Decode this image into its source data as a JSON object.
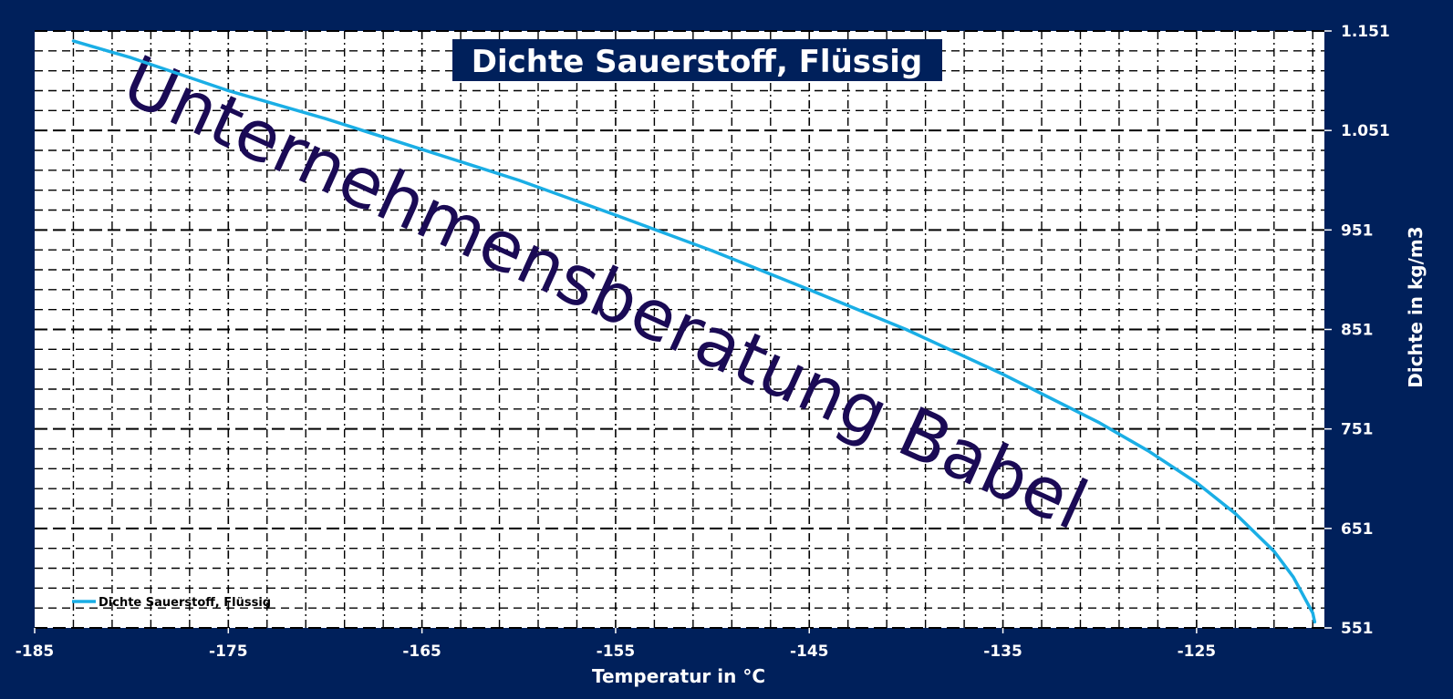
{
  "chart_data": {
    "type": "line",
    "title": "Dichte Sauerstoff, Flüssig",
    "xlabel": "Temperatur in °C",
    "ylabel": "Dichte in kg/m3",
    "xlim": [
      -185,
      -118.4
    ],
    "ylim": [
      551,
      1151
    ],
    "x_ticks": [
      -185,
      -175,
      -165,
      -155,
      -145,
      -135,
      -125
    ],
    "x_tick_labels": [
      "-185",
      "-175",
      "-165",
      "-155",
      "-145",
      "-135",
      "-125"
    ],
    "y_ticks": [
      551,
      651,
      751,
      851,
      951,
      1051,
      1151
    ],
    "y_tick_labels": [
      "551",
      "651",
      "751",
      "851",
      "951",
      "1.051",
      "1.151"
    ],
    "y_axis_position": "right",
    "grid": true,
    "legend_position": "bottom-left",
    "series": [
      {
        "name": "Dichte Sauerstoff, Flüssig",
        "color": "#1aaee5",
        "x": [
          -183.0,
          -180.0,
          -175.0,
          -170.0,
          -165.0,
          -160.0,
          -155.0,
          -150.0,
          -145.0,
          -140.0,
          -135.0,
          -130.0,
          -127.5,
          -125.0,
          -123.0,
          -121.0,
          -120.0,
          -119.0,
          -118.9
        ],
        "y": [
          1141,
          1124,
          1091,
          1063,
          1032,
          1001,
          966,
          930,
          891,
          851,
          806,
          757,
          729,
          697,
          666,
          628,
          602,
          566,
          557
        ]
      }
    ]
  },
  "watermark": {
    "text": "Unternehmensberatung Babel"
  },
  "colors": {
    "background": "#00205b",
    "plot_area": "#ffffff",
    "grid": "#000000",
    "line": "#1aaee5",
    "title_box": "#00205b",
    "watermark": "#1a0a55"
  }
}
